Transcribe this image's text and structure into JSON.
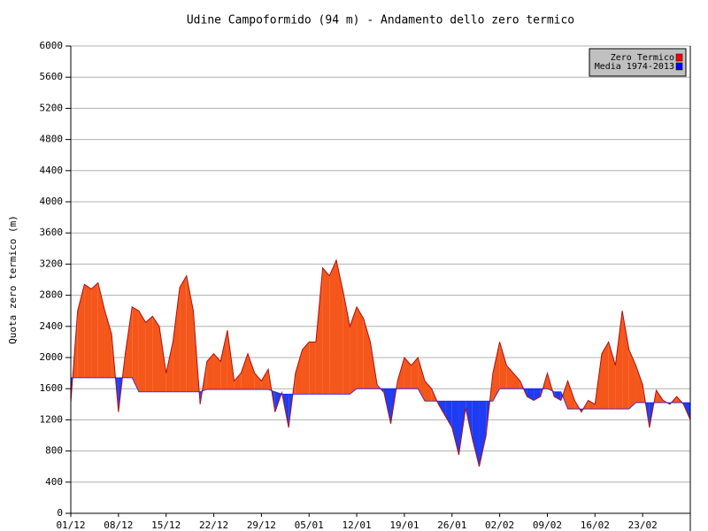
{
  "chart_data": {
    "type": "area_diff",
    "title": "Udine Campoformido (94 m) - Andamento dello zero termico",
    "y_label": "Quota zero termico (m)",
    "categories": [
      "01/12",
      null,
      null,
      null,
      null,
      null,
      null,
      "08/12",
      null,
      null,
      null,
      null,
      null,
      null,
      "15/12",
      null,
      null,
      null,
      null,
      null,
      null,
      "22/12",
      null,
      null,
      null,
      null,
      null,
      null,
      "29/12",
      null,
      null,
      null,
      null,
      null,
      null,
      "05/01",
      null,
      null,
      null,
      null,
      null,
      null,
      "12/01",
      null,
      null,
      null,
      null,
      null,
      null,
      "19/01",
      null,
      null,
      null,
      null,
      null,
      null,
      "26/01",
      null,
      null,
      null,
      null,
      null,
      null,
      "02/02",
      null,
      null,
      null,
      null,
      null,
      null,
      "09/02",
      null,
      null,
      null,
      null,
      null,
      null,
      "16/02",
      null,
      null,
      null,
      null,
      null,
      null,
      "23/02",
      null,
      null,
      null,
      null,
      null,
      null,
      null
    ],
    "series": [
      {
        "name": "Zero Termico",
        "color": "#ff0000",
        "values": [
          1420,
          2600,
          2940,
          2880,
          2960,
          2600,
          2300,
          1300,
          2050,
          2650,
          2600,
          2450,
          2530,
          2400,
          1800,
          2200,
          2900,
          3050,
          2600,
          1400,
          1950,
          2050,
          1950,
          2350,
          1700,
          1800,
          2050,
          1800,
          1700,
          1850,
          1300,
          1550,
          1100,
          1800,
          2100,
          2200,
          2200,
          3150,
          3050,
          3250,
          2850,
          2400,
          2650,
          2500,
          2200,
          1650,
          1550,
          1150,
          1700,
          2000,
          1900,
          2000,
          1700,
          1600,
          1400,
          1250,
          1100,
          750,
          1350,
          950,
          600,
          1000,
          1800,
          2200,
          1900,
          1800,
          1700,
          1500,
          1450,
          1500,
          1800,
          1500,
          1450,
          1700,
          1450,
          1300,
          1450,
          1400,
          2050,
          2200,
          1900,
          2600,
          2100,
          1900,
          1650,
          1100,
          1580,
          1450,
          1400,
          1500,
          1400,
          1200
        ]
      },
      {
        "name": "Media 1974-2013",
        "color": "#0000ff",
        "values": [
          1740,
          1740,
          1740,
          1740,
          1740,
          1740,
          1740,
          1740,
          1740,
          1740,
          1560,
          1560,
          1560,
          1560,
          1560,
          1560,
          1560,
          1560,
          1560,
          1560,
          1590,
          1590,
          1590,
          1590,
          1590,
          1590,
          1590,
          1590,
          1590,
          1590,
          1560,
          1530,
          1530,
          1530,
          1530,
          1530,
          1530,
          1530,
          1530,
          1530,
          1530,
          1530,
          1600,
          1600,
          1600,
          1600,
          1600,
          1600,
          1600,
          1600,
          1600,
          1600,
          1440,
          1440,
          1440,
          1440,
          1440,
          1440,
          1440,
          1440,
          1440,
          1440,
          1440,
          1600,
          1600,
          1600,
          1600,
          1600,
          1600,
          1600,
          1600,
          1560,
          1560,
          1340,
          1340,
          1340,
          1340,
          1340,
          1340,
          1340,
          1340,
          1340,
          1340,
          1420,
          1420,
          1420,
          1420,
          1420,
          1420,
          1420,
          1420,
          1420
        ]
      }
    ],
    "fill_above": "#f5561a",
    "fill_below": "#1e3cf5",
    "ylim": [
      0,
      6000
    ],
    "yticks": [
      0,
      400,
      800,
      1200,
      1600,
      2000,
      2400,
      2800,
      3200,
      3600,
      4000,
      4400,
      4800,
      5200,
      5600,
      6000
    ],
    "grid": true,
    "legend": "top-right"
  }
}
